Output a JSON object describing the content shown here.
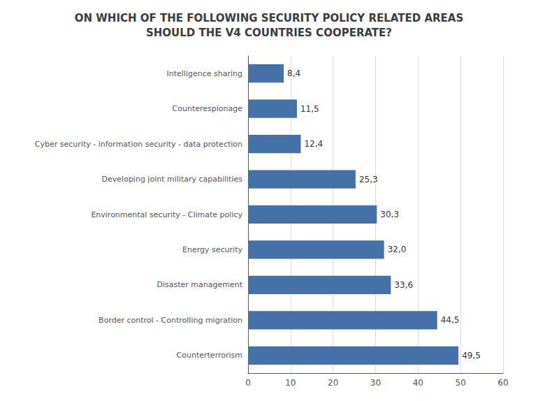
{
  "chart_data": {
    "type": "bar",
    "orientation": "horizontal",
    "title": "ON WHICH OF THE FOLLOWING SECURITY POLICY RELATED AREAS\nSHOULD THE V4 COUNTRIES COOPERATE?",
    "categories": [
      "Counterterrorism",
      "Border control - Controlling migration",
      "Disaster management",
      "Energy security",
      "Environmental security - Climate policy",
      "Developing joint military capabilities",
      "Cyber security - information security - data protection",
      "Counterespionage",
      "Intelligence sharing"
    ],
    "values": [
      49.5,
      44.5,
      33.6,
      32.0,
      30.3,
      25.3,
      12.4,
      11.5,
      8.4
    ],
    "value_labels": [
      "49,5",
      "44,5",
      "33,6",
      "32,0",
      "30,3",
      "25,3",
      "12,4",
      "11,5",
      "8,4"
    ],
    "data_labels": true,
    "color": "#4472A8",
    "xlim": [
      0,
      60
    ],
    "xticks": [
      0,
      10,
      20,
      30,
      40,
      50,
      60
    ],
    "grid": true
  }
}
